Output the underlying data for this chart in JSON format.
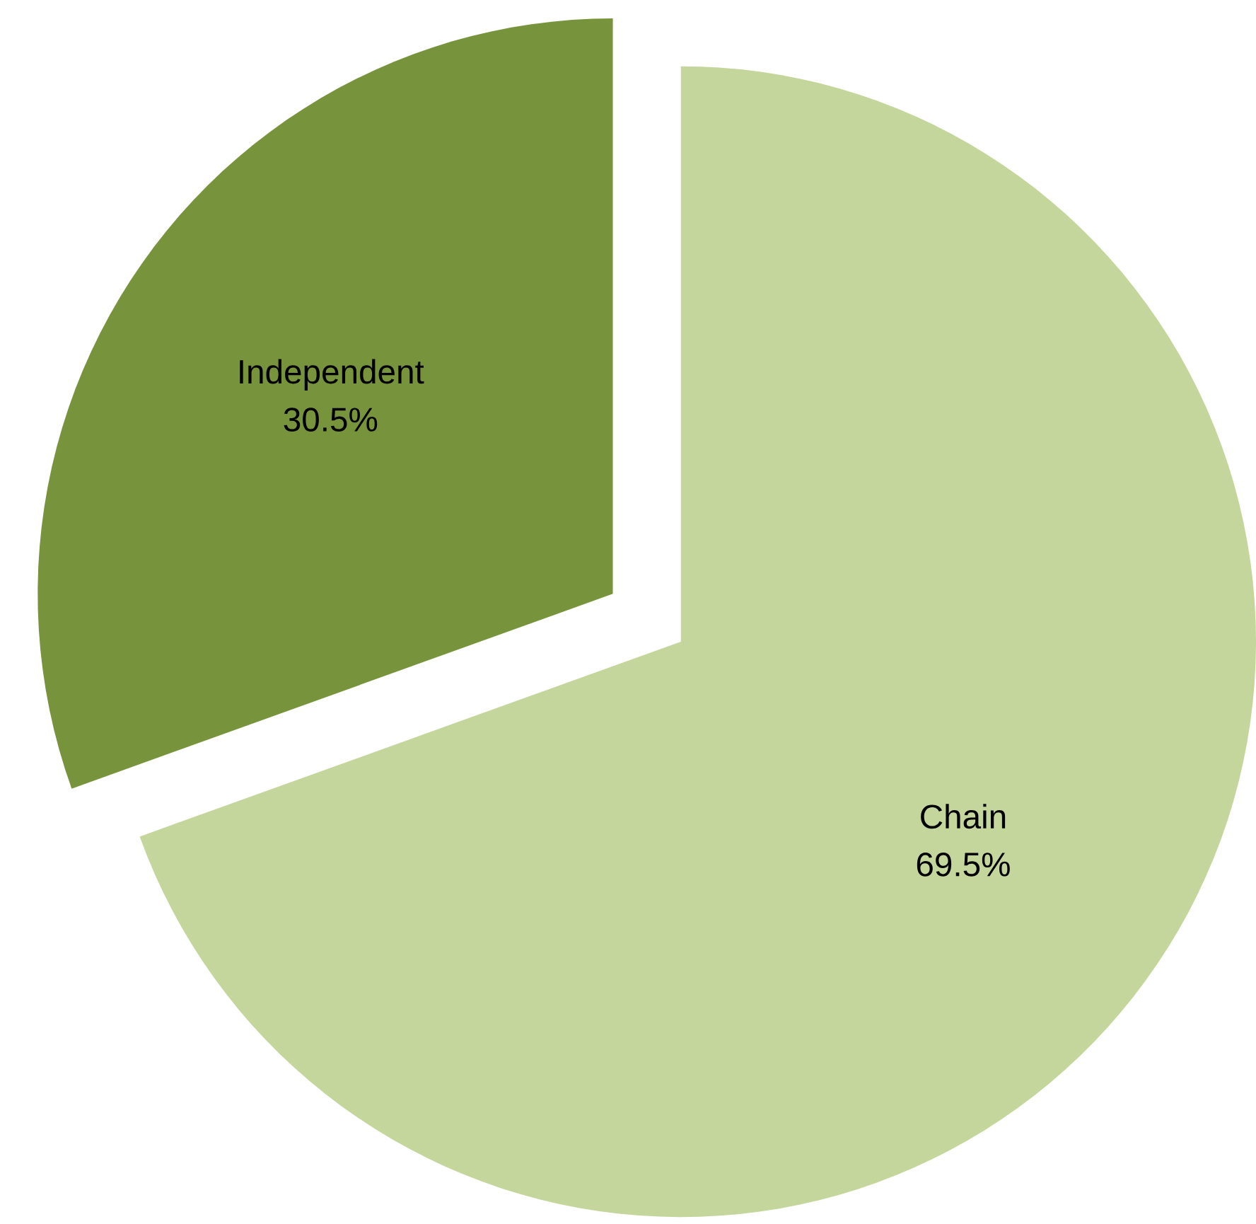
{
  "chart_data": {
    "type": "pie",
    "categories": [
      "Chain",
      "Independent"
    ],
    "values": [
      69.5,
      30.5
    ],
    "value_labels": [
      "69.5%",
      "30.5%"
    ],
    "colors": [
      "#c4d69b",
      "#77933c"
    ]
  }
}
